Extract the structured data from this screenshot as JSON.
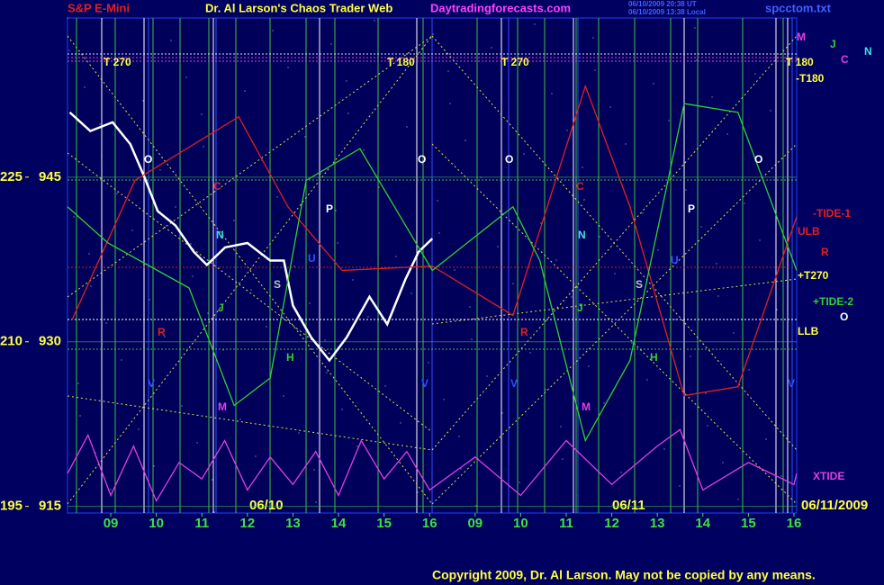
{
  "chart_data": {
    "type": "line",
    "title": "Dr. Al Larson's Chaos Trader Web",
    "subtitle": "S&P E-Mini",
    "site": "Daytradingforecasts.com",
    "timestamps": [
      "06/10/2009 20:38 UT",
      "06/10/2009 13:38 Local"
    ],
    "file": "spcctom.txt",
    "copyright": "Copyright 2009, Dr. Al Larson. May not be copied by any means.",
    "date_labels": [
      "06/10",
      "06/11",
      "06/11/2009"
    ],
    "xlim": [
      -0.95,
      15.06
    ],
    "xticks": [
      {
        "value": 0,
        "label": "09"
      },
      {
        "value": 1,
        "label": "10"
      },
      {
        "value": 2,
        "label": "11"
      },
      {
        "value": 3,
        "label": "12"
      },
      {
        "value": 4,
        "label": "13"
      },
      {
        "value": 5,
        "label": "14"
      },
      {
        "value": 6,
        "label": "15"
      },
      {
        "value": 7,
        "label": "16"
      },
      {
        "value": 8,
        "label": "09"
      },
      {
        "value": 9,
        "label": "10"
      },
      {
        "value": 10,
        "label": "11"
      },
      {
        "value": 11,
        "label": "12"
      },
      {
        "value": 12,
        "label": "13"
      },
      {
        "value": 13,
        "label": "14"
      },
      {
        "value": 14,
        "label": "15"
      },
      {
        "value": 15,
        "label": "16"
      }
    ],
    "ylim": [
      914.4,
      959.5
    ],
    "yticks": [
      915,
      930,
      945
    ],
    "y2lim": [
      194.4,
      239.5
    ],
    "y2ticks": [
      195,
      210,
      225
    ],
    "series": [
      {
        "color": "#ffffff",
        "x": [
          -0.9,
          -0.45,
          0.04,
          0.43,
          0.73,
          1.03,
          1.42,
          1.82,
          2.11,
          2.51,
          3.0,
          3.5,
          3.8,
          4.0,
          4.4,
          4.8,
          5.18,
          5.68,
          6.07,
          6.47,
          6.76,
          7.06
        ],
        "values": [
          950.9,
          949.2,
          950.0,
          948.0,
          945.1,
          941.9,
          940.6,
          938.2,
          937.0,
          938.6,
          939.0,
          937.4,
          937.4,
          933.3,
          930.4,
          928.3,
          930.4,
          934.1,
          931.6,
          935.7,
          938.2,
          939.4
        ]
      },
      {
        "name": "-TIDE-1",
        "color": "#e02020",
        "x": [
          -0.85,
          0.53,
          2.81,
          3.89,
          5.08,
          7.06,
          8.83,
          10.42,
          11.4,
          12.59,
          13.77,
          15.06
        ],
        "values": [
          932.0,
          944.7,
          950.5,
          942.3,
          936.5,
          936.9,
          932.4,
          953.3,
          942.3,
          925.1,
          925.9,
          941.4
        ]
      },
      {
        "name": "+TIDE-2",
        "color": "#30d030",
        "x": [
          -0.95,
          -0.06,
          1.72,
          2.71,
          3.5,
          4.29,
          5.47,
          7.06,
          8.83,
          9.42,
          10.42,
          11.4,
          12.59,
          13.77,
          15.06
        ],
        "values": [
          942.3,
          939.0,
          934.9,
          924.2,
          926.7,
          944.7,
          947.6,
          936.5,
          942.3,
          937.4,
          921.0,
          928.3,
          951.7,
          950.9,
          936.5
        ]
      },
      {
        "name": "XTIDE",
        "color": "#e040e0",
        "x": [
          -0.95,
          -0.5,
          0,
          0.5,
          1,
          1.5,
          2,
          2.5,
          3,
          3.5,
          4,
          4.5,
          5,
          5.5,
          6,
          6.5,
          7,
          8,
          9,
          10,
          11,
          12,
          12.5,
          13,
          14,
          15,
          15.06
        ],
        "values": [
          918.0,
          921.5,
          916.0,
          920.5,
          915.5,
          919.0,
          917.5,
          921.0,
          916.5,
          919.5,
          917.0,
          920.0,
          916.0,
          921.0,
          917.5,
          920.0,
          916.5,
          919.5,
          916.0,
          921.0,
          917.0,
          920.5,
          922.0,
          916.5,
          919.0,
          917.0,
          918.0
        ]
      }
    ],
    "annotations": [
      "T 270",
      "T 180",
      "T 270",
      "T 180",
      "-T180",
      "M",
      "J",
      "C",
      "N",
      "ULB",
      "R",
      "+T270",
      "O",
      "LLB",
      "O",
      "O",
      "O",
      "O",
      "C",
      "C",
      "P",
      "P",
      "N",
      "N",
      "U",
      "U",
      "S",
      "S",
      "J",
      "J",
      "R",
      "R",
      "H",
      "H",
      "V",
      "V",
      "V",
      "V",
      "M",
      "M"
    ]
  }
}
